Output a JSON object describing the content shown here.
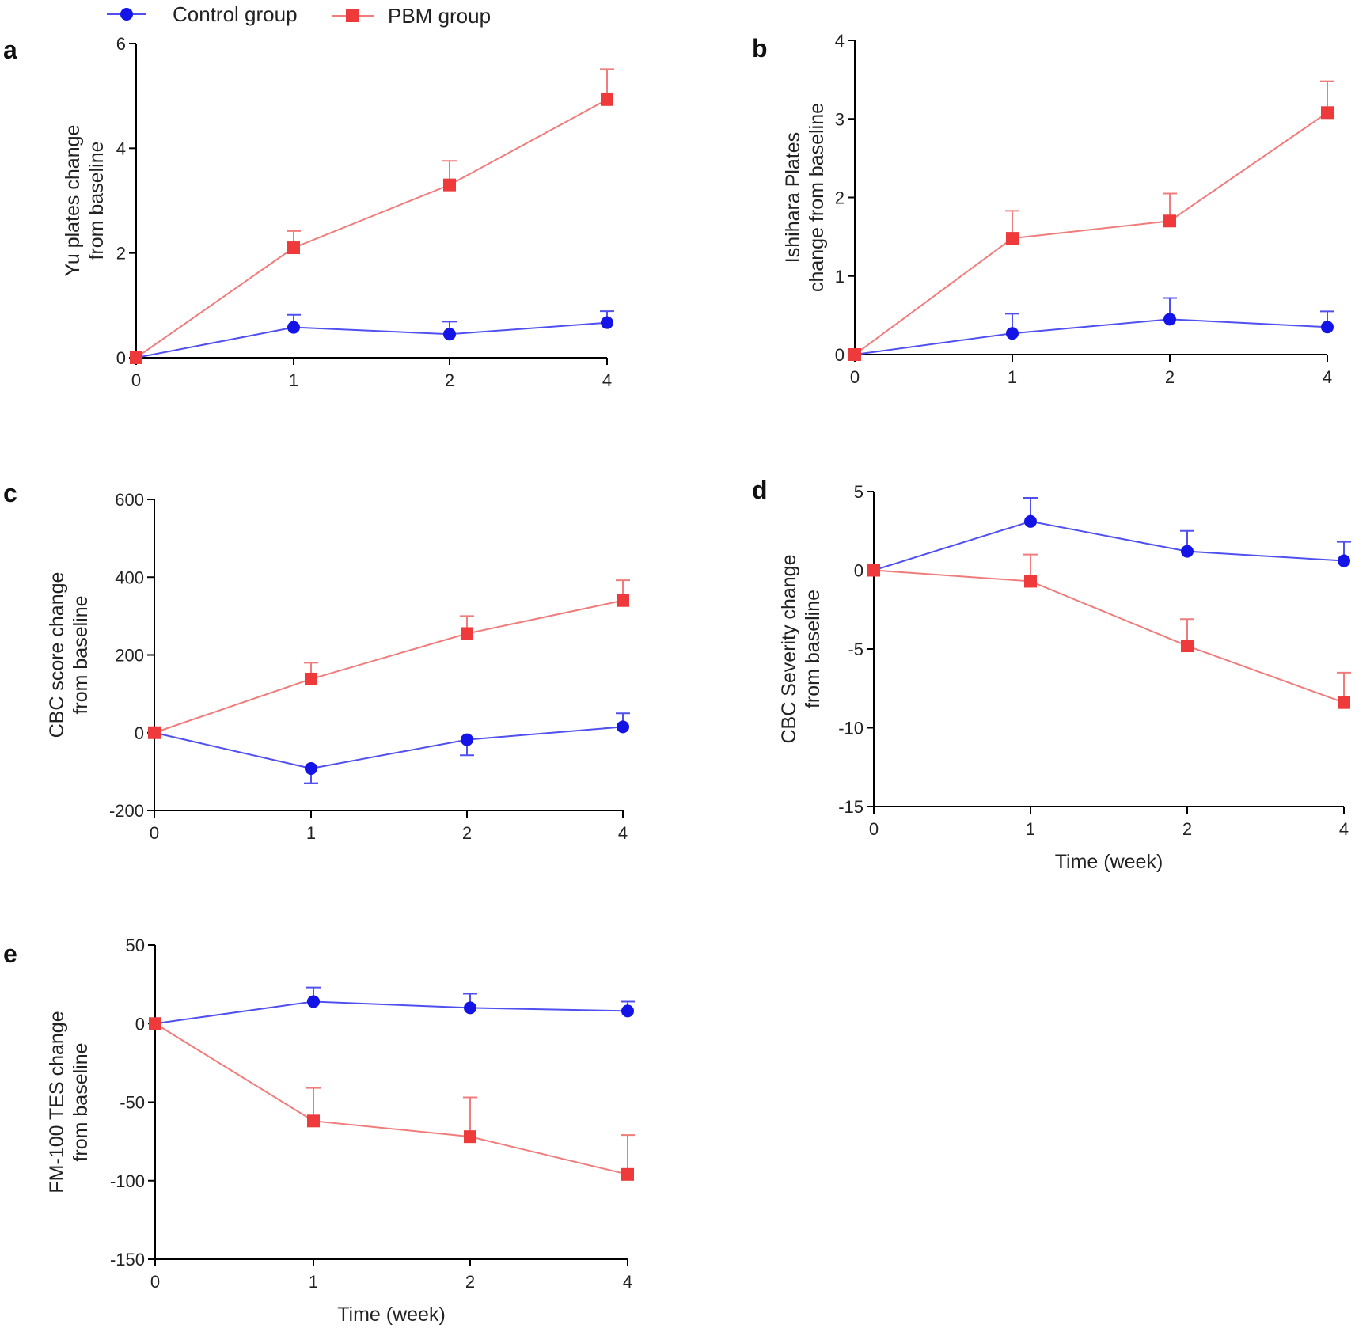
{
  "colors": {
    "control": "#1414e6",
    "pbm": "#ee3a3a",
    "pbm_line": "#f07c7c",
    "control_line": "#5050f0"
  },
  "legend": [
    {
      "name": "Control group",
      "marker": "circle",
      "color": "#1414e6"
    },
    {
      "name": "PBM group",
      "marker": "square",
      "color": "#ee3a3a"
    }
  ],
  "chart_data": [
    {
      "panel": "a",
      "type": "line",
      "categories": [
        "0",
        "1",
        "2",
        "4"
      ],
      "ylabel_lines": [
        "Yu plates change",
        "from baseline"
      ],
      "xlabel": "",
      "ylim": [
        0,
        6
      ],
      "yticks": [
        0,
        2,
        4,
        6
      ],
      "series": [
        {
          "name": "Control group",
          "values": [
            0,
            0.58,
            0.45,
            0.67
          ],
          "err": [
            0,
            0.24,
            0.24,
            0.22
          ]
        },
        {
          "name": "PBM group",
          "values": [
            0,
            2.1,
            3.3,
            4.93
          ],
          "err": [
            0,
            0.32,
            0.46,
            0.58
          ]
        }
      ]
    },
    {
      "panel": "b",
      "type": "line",
      "categories": [
        "0",
        "1",
        "2",
        "4"
      ],
      "ylabel_lines": [
        "Ishihara Plates",
        "change from baseline"
      ],
      "xlabel": "",
      "ylim": [
        0,
        4
      ],
      "yticks": [
        0,
        1,
        2,
        3,
        4
      ],
      "series": [
        {
          "name": "Control group",
          "values": [
            0,
            0.27,
            0.45,
            0.35
          ],
          "err": [
            0,
            0.25,
            0.27,
            0.2
          ]
        },
        {
          "name": "PBM group",
          "values": [
            0,
            1.48,
            1.7,
            3.08
          ],
          "err": [
            0,
            0.35,
            0.35,
            0.4
          ]
        }
      ]
    },
    {
      "panel": "c",
      "type": "line",
      "categories": [
        "0",
        "1",
        "2",
        "4"
      ],
      "ylabel_lines": [
        "CBC score change",
        "from  baseline"
      ],
      "xlabel": "",
      "ylim": [
        -200,
        600
      ],
      "yticks": [
        -200,
        0,
        200,
        400,
        600
      ],
      "series": [
        {
          "name": "Control group",
          "values": [
            0,
            -92,
            -18,
            15
          ],
          "err": [
            0,
            38,
            40,
            35
          ]
        },
        {
          "name": "PBM group",
          "values": [
            0,
            138,
            255,
            340
          ],
          "err": [
            0,
            42,
            45,
            52
          ]
        }
      ]
    },
    {
      "panel": "d",
      "type": "line",
      "categories": [
        "0",
        "1",
        "2",
        "4"
      ],
      "ylabel_lines": [
        "CBC Severity change",
        "from baseline"
      ],
      "xlabel": "Time (week)",
      "ylim": [
        -15,
        5
      ],
      "yticks": [
        -15,
        -10,
        -5,
        0,
        5
      ],
      "series": [
        {
          "name": "Control group",
          "values": [
            0,
            3.1,
            1.2,
            0.6
          ],
          "err": [
            0,
            1.5,
            1.3,
            1.2
          ]
        },
        {
          "name": "PBM group",
          "values": [
            0,
            -0.7,
            -4.8,
            -8.4
          ],
          "err": [
            0,
            1.7,
            1.7,
            1.9
          ]
        }
      ]
    },
    {
      "panel": "e",
      "type": "line",
      "categories": [
        "0",
        "1",
        "2",
        "4"
      ],
      "ylabel_lines": [
        "FM-100 TES change",
        "from baseline"
      ],
      "xlabel": "Time (week)",
      "ylim": [
        -150,
        50
      ],
      "yticks": [
        -150,
        -100,
        -50,
        0,
        50
      ],
      "series": [
        {
          "name": "Control group",
          "values": [
            0,
            14,
            10,
            8
          ],
          "err": [
            0,
            9,
            9,
            6
          ]
        },
        {
          "name": "PBM group",
          "values": [
            0,
            -62,
            -72,
            -96
          ],
          "err": [
            0,
            21,
            25,
            25
          ]
        }
      ]
    }
  ]
}
